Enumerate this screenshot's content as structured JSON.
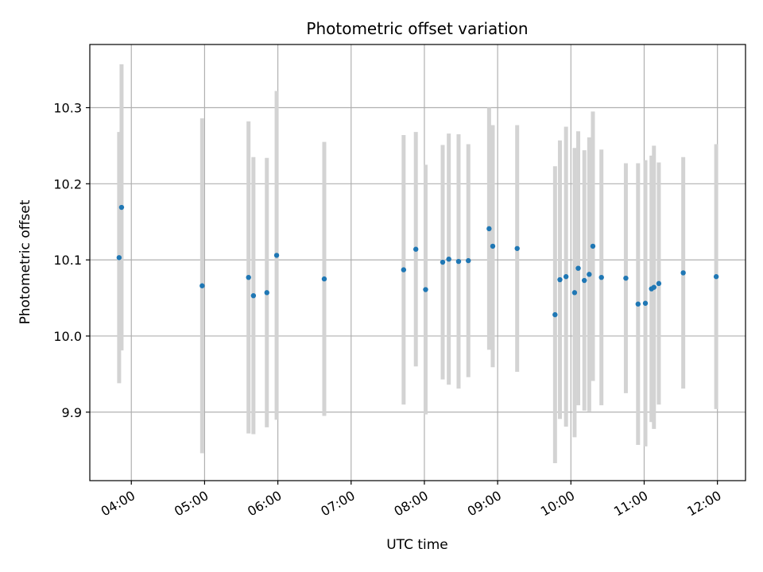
{
  "chart_data": {
    "type": "scatter",
    "title": "Photometric offset variation",
    "xlabel": "UTC time",
    "ylabel": "Photometric offset",
    "x_ticks": [
      "04:00",
      "05:00",
      "06:00",
      "07:00",
      "08:00",
      "09:00",
      "10:00",
      "11:00",
      "12:00"
    ],
    "y_ticks": [
      "9.9",
      "10.0",
      "10.1",
      "10.2",
      "10.3"
    ],
    "xlim": [
      "03:26",
      "12:23"
    ],
    "ylim": [
      9.81,
      10.383
    ],
    "grid": true,
    "marker_color": "#1f77b4",
    "errorbar_color": "#d3d3d3",
    "points": [
      {
        "x": "03:50",
        "y": 10.103,
        "err": 0.165
      },
      {
        "x": "03:52",
        "y": 10.169,
        "err": 0.188
      },
      {
        "x": "04:58",
        "y": 10.066,
        "err": 0.22
      },
      {
        "x": "05:36",
        "y": 10.077,
        "err": 0.205
      },
      {
        "x": "05:40",
        "y": 10.053,
        "err": 0.182
      },
      {
        "x": "05:51",
        "y": 10.057,
        "err": 0.177
      },
      {
        "x": "05:59",
        "y": 10.106,
        "err": 0.216
      },
      {
        "x": "06:38",
        "y": 10.075,
        "err": 0.18
      },
      {
        "x": "07:43",
        "y": 10.087,
        "err": 0.177
      },
      {
        "x": "07:53",
        "y": 10.114,
        "err": 0.154
      },
      {
        "x": "08:01",
        "y": 10.061,
        "err": 0.164
      },
      {
        "x": "08:15",
        "y": 10.097,
        "err": 0.154
      },
      {
        "x": "08:20",
        "y": 10.101,
        "err": 0.165
      },
      {
        "x": "08:28",
        "y": 10.098,
        "err": 0.167
      },
      {
        "x": "08:36",
        "y": 10.099,
        "err": 0.153
      },
      {
        "x": "08:53",
        "y": 10.141,
        "err": 0.159
      },
      {
        "x": "08:56",
        "y": 10.118,
        "err": 0.159
      },
      {
        "x": "09:16",
        "y": 10.115,
        "err": 0.162
      },
      {
        "x": "09:47",
        "y": 10.028,
        "err": 0.195
      },
      {
        "x": "09:51",
        "y": 10.074,
        "err": 0.183
      },
      {
        "x": "09:56",
        "y": 10.078,
        "err": 0.197
      },
      {
        "x": "10:03",
        "y": 10.057,
        "err": 0.19
      },
      {
        "x": "10:06",
        "y": 10.089,
        "err": 0.18
      },
      {
        "x": "10:11",
        "y": 10.073,
        "err": 0.171
      },
      {
        "x": "10:15",
        "y": 10.081,
        "err": 0.18
      },
      {
        "x": "10:18",
        "y": 10.118,
        "err": 0.177
      },
      {
        "x": "10:25",
        "y": 10.077,
        "err": 0.168
      },
      {
        "x": "10:45",
        "y": 10.076,
        "err": 0.151
      },
      {
        "x": "10:55",
        "y": 10.042,
        "err": 0.185
      },
      {
        "x": "11:01",
        "y": 10.043,
        "err": 0.188
      },
      {
        "x": "11:06",
        "y": 10.062,
        "err": 0.175
      },
      {
        "x": "11:08",
        "y": 10.064,
        "err": 0.186
      },
      {
        "x": "11:12",
        "y": 10.069,
        "err": 0.159
      },
      {
        "x": "11:32",
        "y": 10.083,
        "err": 0.152
      },
      {
        "x": "11:59",
        "y": 10.078,
        "err": 0.174
      }
    ]
  }
}
